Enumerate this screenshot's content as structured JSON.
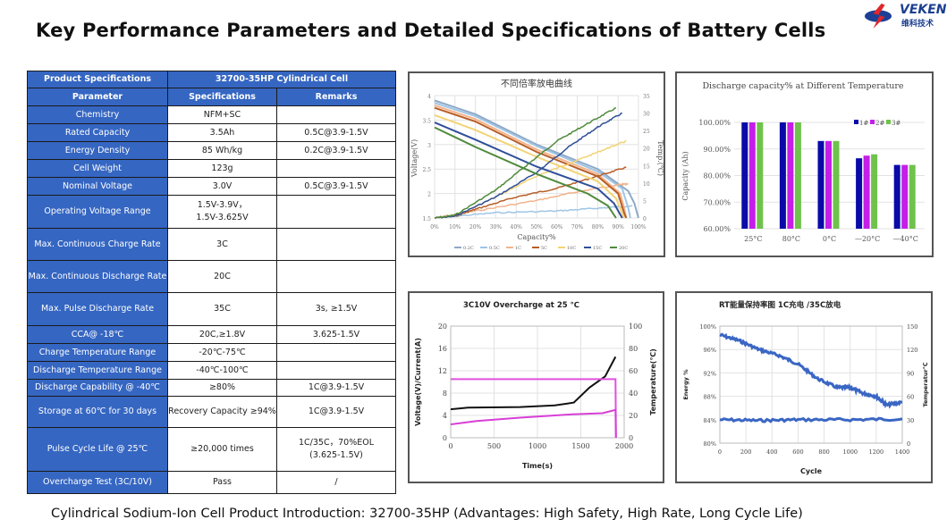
{
  "header": {
    "title": "Key Performance Parameters and Detailed Specifications of Battery Cells",
    "logo_text": "VEKEN",
    "logo_sub": "维科技术"
  },
  "table": {
    "title_left": "Product Specifications",
    "title_right": "32700-35HP  Cylindrical Cell",
    "columns": [
      "Parameter",
      "Specifications",
      "Remarks"
    ],
    "rows": [
      {
        "p": "Chemistry",
        "s": "NFM+SC",
        "r": ""
      },
      {
        "p": "Rated Capacity",
        "s": "3.5Ah",
        "r": "0.5C@3.9-1.5V"
      },
      {
        "p": "Energy Density",
        "s": "85 Wh/kg",
        "r": "0.2C@3.9-1.5V"
      },
      {
        "p": "Cell Weight",
        "s": "123g",
        "r": ""
      },
      {
        "p": "Nominal Voltage",
        "s": "3.0V",
        "r": "0.5C@3.9-1.5V"
      },
      {
        "p": "Operating Voltage Range",
        "s": "1.5V-3.9V，\n1.5V-3.625V",
        "r": ""
      },
      {
        "p": "Max. Continuous Charge Rate",
        "s": "3C",
        "r": ""
      },
      {
        "p": "Max. Continuous Discharge Rate",
        "s": "20C",
        "r": ""
      },
      {
        "p": "Max. Pulse Discharge Rate",
        "s": "35C",
        "r": "3s, ≥1.5V"
      },
      {
        "p": "CCA@ -18℃",
        "s": "20C,≥1.8V",
        "r": "3.625-1.5V"
      },
      {
        "p": "Charge Temperature Range",
        "s": "-20℃-75℃",
        "r": ""
      },
      {
        "p": "Discharge Temperature Range",
        "s": "-40℃-100℃",
        "r": ""
      },
      {
        "p": "Discharge Capability @ -40℃",
        "s": "≥80%",
        "r": "1C@3.9-1.5V"
      },
      {
        "p": "Storage at 60℃  for 30 days",
        "s": "Recovery Capacity ≥94%",
        "r": "1C@3.9-1.5V"
      },
      {
        "p": "Pulse Cycle Life @ 25℃",
        "s": "≥20,000 times",
        "r": "1C/35C，70%EOL\n(3.625-1.5V)"
      },
      {
        "p": "Overcharge Test (3C/10V)",
        "s": "Pass",
        "r": "/"
      }
    ]
  },
  "chart_data": [
    {
      "type": "line",
      "title": "不同倍率放电曲线",
      "xlabel": "Capacity%",
      "ylabel": "Voltage(V)",
      "y2label": "Temp.(℃)",
      "xlim": [
        0,
        100
      ],
      "ylim": [
        1.5,
        4
      ],
      "y2lim": [
        0,
        35
      ],
      "xticks": [
        "0%",
        "10%",
        "20%",
        "30%",
        "40%",
        "50%",
        "60%",
        "70%",
        "80%",
        "90%",
        "100%"
      ],
      "yticks": [
        "1.5",
        "2",
        "2.5",
        "3",
        "3.5",
        "4"
      ],
      "y2ticks": [
        "0",
        "5",
        "10",
        "15",
        "20",
        "25",
        "30",
        "35"
      ],
      "legend": "bottom",
      "grid": true,
      "series": [
        {
          "name": "0.2C",
          "color": "#8ea9c8",
          "voltage": [
            [
              0,
              3.9
            ],
            [
              20,
              3.62
            ],
            [
              50,
              3.0
            ],
            [
              80,
              2.5
            ],
            [
              95,
              2.05
            ],
            [
              98,
              1.8
            ],
            [
              100,
              1.5
            ]
          ],
          "temp": []
        },
        {
          "name": "0.5C",
          "color": "#9ec5e6",
          "voltage": [
            [
              0,
              3.85
            ],
            [
              20,
              3.58
            ],
            [
              50,
              2.97
            ],
            [
              80,
              2.45
            ],
            [
              92,
              2.1
            ],
            [
              95,
              1.7
            ],
            [
              96,
              1.5
            ]
          ],
          "temp": [
            [
              0,
              0
            ],
            [
              30,
              1.5
            ],
            [
              60,
              2
            ],
            [
              80,
              2.8
            ],
            [
              97,
              3.5
            ]
          ]
        },
        {
          "name": "1C",
          "color": "#f2b48c",
          "voltage": [
            [
              0,
              3.8
            ],
            [
              20,
              3.52
            ],
            [
              50,
              2.9
            ],
            [
              80,
              2.4
            ],
            [
              91,
              2.0
            ],
            [
              93,
              1.7
            ],
            [
              94,
              1.5
            ]
          ],
          "temp": [
            [
              0,
              0
            ],
            [
              20,
              2
            ],
            [
              50,
              5
            ],
            [
              70,
              7.5
            ],
            [
              90,
              9.5
            ],
            [
              95,
              9.8
            ]
          ]
        },
        {
          "name": "5C",
          "color": "#b85d26",
          "voltage": [
            [
              0,
              3.75
            ],
            [
              20,
              3.47
            ],
            [
              50,
              2.85
            ],
            [
              80,
              2.35
            ],
            [
              90,
              2.0
            ],
            [
              93,
              1.6
            ],
            [
              94,
              1.5
            ]
          ],
          "temp": [
            [
              0,
              0
            ],
            [
              10,
              0.5
            ],
            [
              20,
              2.5
            ],
            [
              40,
              6
            ],
            [
              60,
              8.5
            ],
            [
              80,
              12
            ],
            [
              94,
              14.5
            ]
          ]
        },
        {
          "name": "10C",
          "color": "#f2d475",
          "voltage": [
            [
              0,
              3.6
            ],
            [
              20,
              3.3
            ],
            [
              50,
              2.75
            ],
            [
              80,
              2.25
            ],
            [
              89,
              1.9
            ],
            [
              93,
              1.5
            ]
          ],
          "temp": [
            [
              0,
              0
            ],
            [
              10,
              0.5
            ],
            [
              30,
              6
            ],
            [
              50,
              12
            ],
            [
              70,
              16.5
            ],
            [
              85,
              20
            ],
            [
              94,
              22
            ]
          ]
        },
        {
          "name": "15C",
          "color": "#2f4f9a",
          "voltage": [
            [
              0,
              3.45
            ],
            [
              20,
              3.1
            ],
            [
              50,
              2.55
            ],
            [
              80,
              2.1
            ],
            [
              88,
              1.8
            ],
            [
              92,
              1.5
            ]
          ],
          "temp": [
            [
              0,
              0
            ],
            [
              10,
              0.5
            ],
            [
              30,
              6
            ],
            [
              50,
              13
            ],
            [
              65,
              20
            ],
            [
              80,
              26
            ],
            [
              92,
              30
            ]
          ]
        },
        {
          "name": "20C",
          "color": "#4f8a3c",
          "voltage": [
            [
              0,
              3.35
            ],
            [
              20,
              2.95
            ],
            [
              50,
              2.4
            ],
            [
              75,
              2.0
            ],
            [
              85,
              1.75
            ],
            [
              89,
              1.5
            ]
          ],
          "temp": [
            [
              0,
              0
            ],
            [
              10,
              0.8
            ],
            [
              30,
              8
            ],
            [
              45,
              15
            ],
            [
              60,
              22
            ],
            [
              75,
              27
            ],
            [
              89,
              31.5
            ]
          ]
        }
      ]
    },
    {
      "type": "bar",
      "title": "Discharge capacity% at Different Temperature",
      "ylabel": "Capacity (Ah)",
      "categories": [
        "25°C",
        "80°C",
        "0°C",
        "—20°C",
        "—40°C"
      ],
      "ylim": [
        60,
        100
      ],
      "yticks": [
        "60.00%",
        "70.00%",
        "80.00%",
        "90.00%",
        "100.00%"
      ],
      "legend": "top-right",
      "grid": true,
      "series": [
        {
          "name": "1#",
          "color": "#0a0aa8",
          "values": [
            100,
            100,
            93,
            86.5,
            84
          ]
        },
        {
          "name": "2#",
          "color": "#c41ee8",
          "values": [
            100,
            100,
            93,
            87.5,
            84
          ]
        },
        {
          "name": "3#",
          "color": "#6fc24c",
          "values": [
            100,
            100,
            93,
            88,
            84
          ]
        }
      ]
    },
    {
      "type": "line",
      "title": "3C10V Overcharge at 25 ℃",
      "xlabel": "Time(s)",
      "ylabel": "Voltage(V)/Current(A)",
      "y2label": "Temperature(℃)",
      "xlim": [
        0,
        2000
      ],
      "ylim": [
        0,
        20
      ],
      "y2lim": [
        0,
        100
      ],
      "xticks": [
        "0",
        "500",
        "1000",
        "1500",
        "2000"
      ],
      "yticks": [
        "0",
        "4",
        "8",
        "12",
        "16",
        "20"
      ],
      "y2ticks": [
        "0",
        "20",
        "40",
        "60",
        "80",
        "100"
      ],
      "grid": true,
      "series": [
        {
          "color": "#111111",
          "axis": "left",
          "points": [
            [
              0,
              5.1
            ],
            [
              200,
              5.4
            ],
            [
              800,
              5.5
            ],
            [
              1200,
              5.8
            ],
            [
              1420,
              6.3
            ],
            [
              1600,
              9
            ],
            [
              1780,
              11
            ],
            [
              1900,
              14.5
            ]
          ]
        },
        {
          "color": "#e050e0",
          "axis": "left",
          "points": [
            [
              0,
              10.5
            ],
            [
              1900,
              10.5
            ],
            [
              1905,
              0
            ]
          ]
        },
        {
          "color": "#d63fd6",
          "axis": "right",
          "points": [
            [
              0,
              12
            ],
            [
              300,
              15
            ],
            [
              800,
              18
            ],
            [
              1400,
              21
            ],
            [
              1750,
              22
            ],
            [
              1900,
              25
            ],
            [
              1905,
              0
            ]
          ]
        }
      ]
    },
    {
      "type": "line",
      "title": "RT能量保持率图  1C充电 /35C放电",
      "xlabel": "Cycle",
      "ylabel": "Energy %",
      "y2label": "Temperatur℃",
      "xlim": [
        0,
        1400
      ],
      "ylim": [
        80,
        100
      ],
      "y2lim": [
        0,
        150
      ],
      "xticks": [
        "0",
        "200",
        "400",
        "600",
        "800",
        "1000",
        "1200",
        "1400"
      ],
      "yticks": [
        "80%",
        "84%",
        "88%",
        "92%",
        "96%",
        "100%"
      ],
      "y2ticks": [
        "0",
        "30",
        "60",
        "90",
        "120",
        "150"
      ],
      "grid": true,
      "series": [
        {
          "color": "#3a66c4",
          "axis": "left",
          "points": [
            [
              0,
              98.5
            ],
            [
              150,
              97.5
            ],
            [
              300,
              96
            ],
            [
              450,
              95
            ],
            [
              600,
              93.5
            ],
            [
              750,
              91
            ],
            [
              900,
              89.5
            ],
            [
              1000,
              89.5
            ],
            [
              1100,
              88.5
            ],
            [
              1200,
              88
            ],
            [
              1280,
              86.5
            ],
            [
              1400,
              87
            ]
          ]
        },
        {
          "color": "#3a66c4",
          "axis": "right",
          "points": [
            [
              0,
              30
            ],
            [
              300,
              29
            ],
            [
              600,
              30
            ],
            [
              1000,
              30
            ],
            [
              1400,
              31
            ]
          ]
        }
      ]
    }
  ],
  "footer": {
    "caption": "Cylindrical Sodium-Ion Cell Product Introduction: 32700-35HP (Advantages: High Safety, High Rate, Long Cycle Life)"
  }
}
